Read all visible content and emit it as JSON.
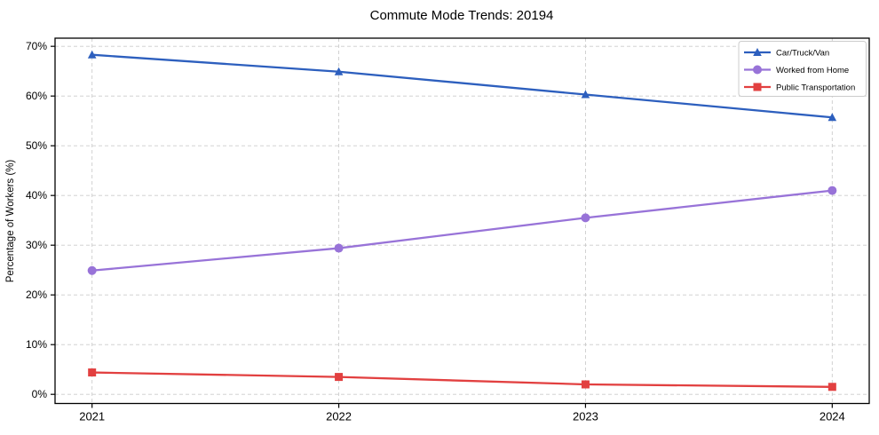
{
  "title": "Commute Mode Trends: 20194",
  "chart_data": {
    "type": "line",
    "title": "Commute Mode Trends: 20194",
    "xlabel": "",
    "ylabel": "Percentage of Workers (%)",
    "categories": [
      "2021",
      "2022",
      "2023",
      "2024"
    ],
    "series": [
      {
        "name": "Car/Truck/Van",
        "values": [
          68.3,
          64.9,
          60.3,
          55.7
        ],
        "color": "#2d5fbe",
        "marker": "triangle"
      },
      {
        "name": "Worked from Home",
        "values": [
          24.9,
          29.4,
          35.5,
          41.0
        ],
        "color": "#9873d8",
        "marker": "circle"
      },
      {
        "name": "Public Transportation",
        "values": [
          4.4,
          3.5,
          2.0,
          1.5
        ],
        "color": "#e24040",
        "marker": "square"
      }
    ],
    "yticks": [
      0,
      10,
      20,
      30,
      40,
      50,
      60,
      70
    ],
    "ytick_suffix": "%",
    "ylim": [
      -1.84,
      71.64
    ],
    "xlim": [
      -0.15,
      3.15
    ],
    "grid": true,
    "grid_style": "dashed",
    "legend_position": "upper right",
    "colors": {
      "grid": "#cccccc",
      "axis": "#000000",
      "text": "#000000",
      "legend_border": "#cccccc",
      "background": "#ffffff"
    }
  }
}
